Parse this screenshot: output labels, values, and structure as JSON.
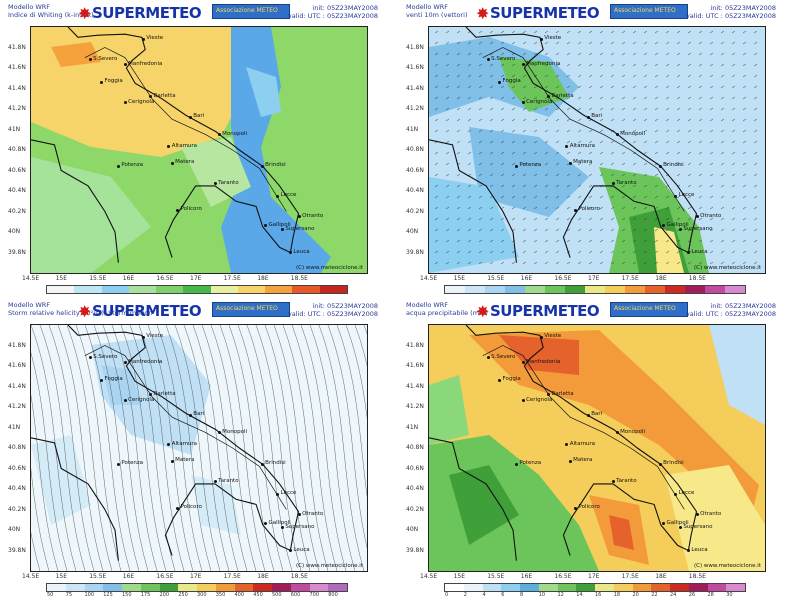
{
  "brand": "SUPERMETEO",
  "banner_text": "Associazione METEO",
  "panels": [
    {
      "id": "tl",
      "model": "Modello WRF",
      "title": "Indice di Whiting (k-index)",
      "init": "init: 05Z23MAY2008",
      "valid": "valid: UTC : 05Z23MAY2008",
      "credit": "(C) www.meteociclone.it",
      "colorbar": [
        "#f5f5f5",
        "#bfe6f5",
        "#8ccff0",
        "#a8e0a0",
        "#7dd06a",
        "#44b84a",
        "#e6f0a0",
        "#f7d46a",
        "#f5a23c",
        "#e8572a",
        "#c4261e"
      ],
      "colorbar_labels": []
    },
    {
      "id": "tr",
      "model": "Modello WRF",
      "title": "venti 10m (vettori)",
      "init": "init: 05Z23MAY2008",
      "valid": "valid: UTC : 05Z23MAY2008",
      "credit": "(C) www.meteociclone.it",
      "colorbar": [
        "#eaf4fb",
        "#cce6f7",
        "#a9d5f2",
        "#7fbfe8",
        "#9fdb8a",
        "#6cc55a",
        "#3fa03a",
        "#e9e98a",
        "#f5cd5a",
        "#f39b3a",
        "#e6622c",
        "#cf2a22",
        "#a31c5a",
        "#c24aa0",
        "#d88ad0"
      ],
      "colorbar_labels": []
    },
    {
      "id": "bl",
      "model": "Modello WRF",
      "title": "Storm relative helicity (m²/s²), Storm motion",
      "init": "init: 05Z23MAY2008",
      "valid": "valid: UTC : 05Z23MAY2008",
      "credit": "(C) www.meteociclone.it",
      "colorbar": [
        "#eaf4fb",
        "#cce6f7",
        "#a9d5f2",
        "#7fbfe8",
        "#9fdb8a",
        "#6cc55a",
        "#3fa03a",
        "#e9e98a",
        "#f5cd5a",
        "#f39b3a",
        "#e6622c",
        "#cf2a22",
        "#a31c5a",
        "#c24aa0",
        "#d88ad0",
        "#b06ac0"
      ],
      "colorbar_labels": [
        "50",
        "75",
        "100",
        "125",
        "150",
        "175",
        "200",
        "250",
        "300",
        "350",
        "400",
        "450",
        "500",
        "600",
        "700",
        "800"
      ]
    },
    {
      "id": "br",
      "model": "Modello WRF",
      "title": "acqua precipitabile (mm)",
      "init": "init: 05Z23MAY2008",
      "valid": "valid: UTC : 05Z23MAY2008",
      "credit": "(C) www.meteociclone.it",
      "colorbar": [
        "#ffffff",
        "#eaf4fb",
        "#bfe0f5",
        "#8ccff0",
        "#5bb0e0",
        "#9fdb8a",
        "#6cc55a",
        "#3fa03a",
        "#e9e98a",
        "#f5cd5a",
        "#f39b3a",
        "#e6622c",
        "#cf2a22",
        "#a31c5a",
        "#c24aa0",
        "#d88ad0"
      ],
      "colorbar_labels": [
        "0",
        "2",
        "4",
        "6",
        "8",
        "10",
        "12",
        "14",
        "16",
        "18",
        "20",
        "22",
        "24",
        "26",
        "28",
        "30"
      ]
    }
  ],
  "lat_labels": [
    "41.8N",
    "41.6N",
    "41.4N",
    "41.2N",
    "41N",
    "40.8N",
    "40.6N",
    "40.4N",
    "40.2N",
    "40N",
    "39.8N"
  ],
  "lon_labels": [
    "14.5E",
    "15E",
    "15.5E",
    "16E",
    "16.5E",
    "17E",
    "17.5E",
    "18E",
    "18.5E"
  ],
  "cities": [
    {
      "name": "S.Severo",
      "lon": 15.38,
      "lat": 41.68
    },
    {
      "name": "Vieste",
      "lon": 16.17,
      "lat": 41.88
    },
    {
      "name": "Manfredonia",
      "lon": 15.9,
      "lat": 41.63
    },
    {
      "name": "Foggia",
      "lon": 15.55,
      "lat": 41.46
    },
    {
      "name": "Barletta",
      "lon": 16.28,
      "lat": 41.32
    },
    {
      "name": "Cerignola",
      "lon": 15.9,
      "lat": 41.26
    },
    {
      "name": "Bari",
      "lon": 16.87,
      "lat": 41.12
    },
    {
      "name": "Altamura",
      "lon": 16.55,
      "lat": 40.83
    },
    {
      "name": "Monopoli",
      "lon": 17.3,
      "lat": 40.95
    },
    {
      "name": "Potenza",
      "lon": 15.8,
      "lat": 40.64
    },
    {
      "name": "Matera",
      "lon": 16.6,
      "lat": 40.67
    },
    {
      "name": "Brindisi",
      "lon": 17.94,
      "lat": 40.64
    },
    {
      "name": "Taranto",
      "lon": 17.24,
      "lat": 40.47
    },
    {
      "name": "Lecce",
      "lon": 18.17,
      "lat": 40.35
    },
    {
      "name": "Otranto",
      "lon": 18.49,
      "lat": 40.15
    },
    {
      "name": "Policoro",
      "lon": 16.68,
      "lat": 40.21
    },
    {
      "name": "Gallipoli",
      "lon": 17.99,
      "lat": 40.06
    },
    {
      "name": "Supersano",
      "lon": 18.24,
      "lat": 40.02
    },
    {
      "name": "Leuca",
      "lon": 18.36,
      "lat": 39.8
    }
  ]
}
